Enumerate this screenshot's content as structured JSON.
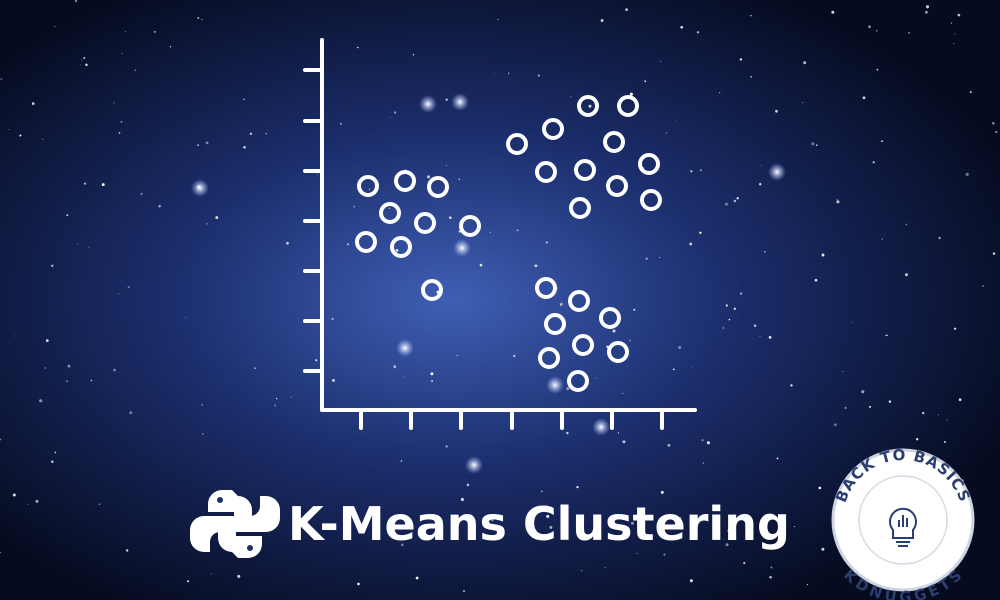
{
  "title": "K-Means Clustering",
  "badge": {
    "top_text": "BACK TO BASICS",
    "bottom_text": "KDNUGGETS"
  }
}
